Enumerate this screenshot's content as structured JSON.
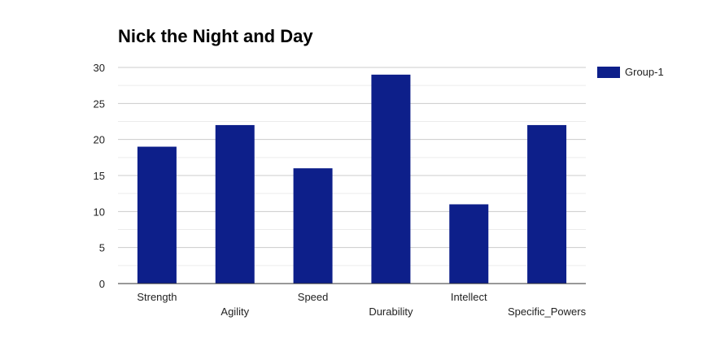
{
  "chart_data": {
    "type": "bar",
    "title": "Nick the Night and Day",
    "xlabel": "",
    "ylabel": "",
    "categories": [
      "Strength",
      "Agility",
      "Speed",
      "Durability",
      "Intellect",
      "Specific_Powers"
    ],
    "series": [
      {
        "name": "Group-1",
        "values": [
          19,
          22,
          16,
          29,
          11,
          22
        ],
        "color": "#0d1f8a"
      }
    ],
    "ylim": [
      0,
      30
    ],
    "yticks": [
      0,
      5,
      10,
      15,
      20,
      25,
      30
    ],
    "grid": true,
    "legend_position": "top-right"
  }
}
